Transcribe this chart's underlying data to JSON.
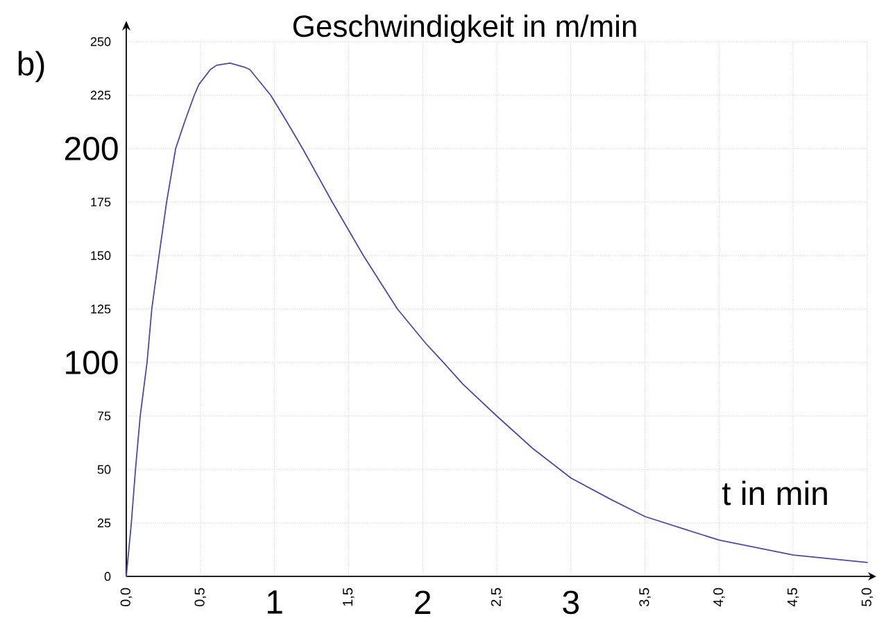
{
  "chart_data": {
    "type": "line",
    "ylabel": "Geschwindigkeit in m/min",
    "xlabel": "t in min",
    "annotations": [
      "b)",
      "1",
      "2",
      "3",
      "100",
      "200"
    ],
    "x": [
      0,
      0.034,
      0.062,
      0.094,
      0.14,
      0.172,
      0.221,
      0.272,
      0.333,
      0.396,
      0.459,
      0.49,
      0.568,
      0.61,
      0.7,
      0.8,
      0.833,
      0.974,
      1.08,
      1.19,
      1.39,
      1.6,
      1.71,
      1.83,
      2.02,
      2.14,
      2.27,
      2.5,
      2.74,
      3,
      3.27,
      3.5,
      3.77,
      4,
      4.5,
      5
    ],
    "values": [
      0,
      25,
      50,
      75,
      100,
      125,
      150,
      175,
      200,
      213,
      225,
      230,
      237,
      239,
      240,
      238,
      237,
      225,
      213,
      200,
      175,
      150,
      138,
      125,
      109,
      100,
      90,
      75,
      60,
      46,
      36,
      28,
      22,
      17,
      10,
      6.5
    ],
    "color": "#4b4ba6",
    "line_style": "solid",
    "grid": true,
    "xlim": [
      0,
      5
    ],
    "ylim": [
      0,
      250
    ],
    "xticks": [
      {
        "value": 0,
        "label": "0,0"
      },
      {
        "value": 0.5,
        "label": "0,5"
      },
      {
        "value": 1,
        "label": null
      },
      {
        "value": 1.5,
        "label": "1,5"
      },
      {
        "value": 2,
        "label": null
      },
      {
        "value": 2.5,
        "label": "2,5"
      },
      {
        "value": 3,
        "label": null
      },
      {
        "value": 3.5,
        "label": "3,5"
      },
      {
        "value": 4,
        "label": "4,0"
      },
      {
        "value": 4.5,
        "label": "4,5"
      },
      {
        "value": 5,
        "label": "5,0"
      }
    ],
    "yticks": [
      0,
      25,
      50,
      75,
      {
        "value": 100,
        "label": null
      },
      125,
      150,
      175,
      {
        "value": 200,
        "label": null
      },
      225,
      250
    ]
  }
}
